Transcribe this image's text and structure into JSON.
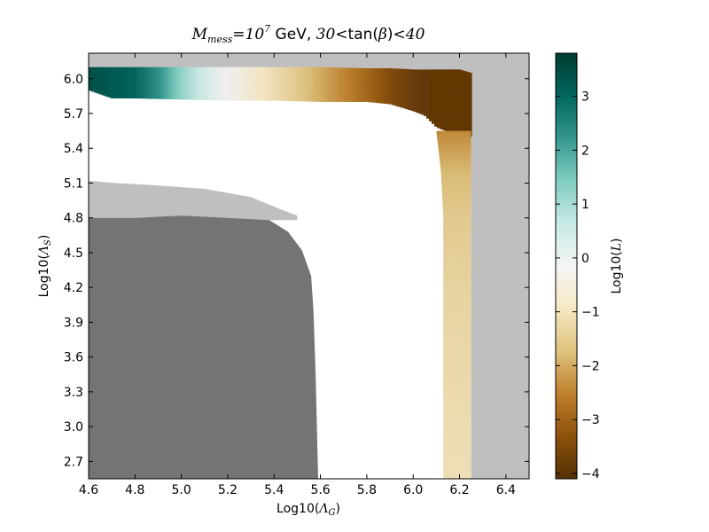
{
  "chart_data": {
    "type": "heatmap",
    "title": {
      "prefix_var": "M",
      "prefix_sub": "mess",
      "prefix_eq": "=10",
      "prefix_exp": "7",
      "middle": " GeV, ",
      "lo": "30",
      "lt1": "<",
      "func": "tan(",
      "beta": "β",
      "close": ")",
      "lt2": "<",
      "hi": "40"
    },
    "xlabel": {
      "text": "Log10(",
      "sym": "Λ",
      "sub": "G",
      "close": ")"
    },
    "ylabel": {
      "text": "Log10(",
      "sym": "Λ",
      "sub": "S",
      "close": ")"
    },
    "xlim": [
      4.6,
      6.5
    ],
    "ylim": [
      2.55,
      6.22
    ],
    "x_ticks": [
      "4.6",
      "4.8",
      "5.0",
      "5.2",
      "5.4",
      "5.6",
      "5.8",
      "6.0",
      "6.2",
      "6.4"
    ],
    "y_ticks": [
      "2.7",
      "3.0",
      "3.3",
      "3.6",
      "3.9",
      "4.2",
      "4.5",
      "4.8",
      "5.1",
      "5.4",
      "5.7",
      "6.0"
    ],
    "colorbar": {
      "label": "Log10(",
      "sym": "L",
      "close": ")",
      "range": [
        -4.1,
        3.8
      ],
      "ticks": [
        "3",
        "2",
        "1",
        "0",
        "−1",
        "−2",
        "−3",
        "−4"
      ],
      "colormap": "BrBG",
      "stops": [
        "#543005",
        "#8c510a",
        "#bf812d",
        "#dfc27d",
        "#f6e8c3",
        "#f5f5f5",
        "#c7eae5",
        "#80cdc1",
        "#35978f",
        "#01665e",
        "#003c30"
      ]
    },
    "regions": [
      {
        "name": "excluded-light",
        "color": "#bfbfbf",
        "polygon": [
          [
            4.6,
            6.22
          ],
          [
            6.5,
            6.22
          ],
          [
            6.5,
            2.55
          ],
          [
            6.25,
            2.55
          ],
          [
            6.25,
            6.05
          ],
          [
            6.2,
            6.08
          ],
          [
            4.6,
            6.1
          ]
        ]
      },
      {
        "name": "excluded-light-lower",
        "color": "#bfbfbf",
        "polygon": [
          [
            4.6,
            5.12
          ],
          [
            4.72,
            5.1
          ],
          [
            4.9,
            5.08
          ],
          [
            5.1,
            5.05
          ],
          [
            5.3,
            4.98
          ],
          [
            5.42,
            4.88
          ],
          [
            5.5,
            4.82
          ],
          [
            5.5,
            4.78
          ],
          [
            5.38,
            4.78
          ],
          [
            5.2,
            4.8
          ],
          [
            5.0,
            4.82
          ],
          [
            4.8,
            4.8
          ],
          [
            4.6,
            4.8
          ]
        ]
      },
      {
        "name": "excluded-dark",
        "color": "#747474",
        "polygon": [
          [
            4.6,
            4.8
          ],
          [
            4.8,
            4.8
          ],
          [
            5.0,
            4.82
          ],
          [
            5.2,
            4.8
          ],
          [
            5.38,
            4.78
          ],
          [
            5.46,
            4.68
          ],
          [
            5.52,
            4.52
          ],
          [
            5.56,
            4.3
          ],
          [
            5.57,
            4.0
          ],
          [
            5.58,
            3.4
          ],
          [
            5.59,
            2.55
          ],
          [
            4.6,
            2.55
          ]
        ]
      }
    ],
    "band": {
      "horizontal": [
        {
          "x": 4.6,
          "top": 6.1,
          "bottom": 5.9
        },
        {
          "x": 4.7,
          "top": 6.1,
          "bottom": 5.83
        },
        {
          "x": 4.8,
          "top": 6.1,
          "bottom": 5.83
        },
        {
          "x": 5.0,
          "top": 6.1,
          "bottom": 5.82
        },
        {
          "x": 5.2,
          "top": 6.1,
          "bottom": 5.81
        },
        {
          "x": 5.4,
          "top": 6.1,
          "bottom": 5.81
        },
        {
          "x": 5.6,
          "top": 6.1,
          "bottom": 5.8
        },
        {
          "x": 5.8,
          "top": 6.09,
          "bottom": 5.8
        },
        {
          "x": 5.9,
          "top": 6.09,
          "bottom": 5.78
        },
        {
          "x": 6.0,
          "top": 6.08,
          "bottom": 5.72
        },
        {
          "x": 6.05,
          "top": 6.08,
          "bottom": 5.68
        },
        {
          "x": 6.1,
          "top": 6.08,
          "bottom": 5.58
        },
        {
          "x": 6.2,
          "top": 6.08,
          "bottom": 5.5
        },
        {
          "x": 6.25,
          "top": 6.05,
          "bottom": 5.5
        }
      ],
      "vertical": [
        {
          "y": 5.55,
          "left": 6.1,
          "right": 6.25
        },
        {
          "y": 5.2,
          "left": 6.12,
          "right": 6.25
        },
        {
          "y": 4.8,
          "left": 6.13,
          "right": 6.25
        },
        {
          "y": 4.2,
          "left": 6.13,
          "right": 6.25
        },
        {
          "y": 3.6,
          "left": 6.13,
          "right": 6.25
        },
        {
          "y": 3.0,
          "left": 6.13,
          "right": 6.25
        },
        {
          "y": 2.55,
          "left": 6.13,
          "right": 6.25
        }
      ],
      "value_profile": [
        {
          "x": 4.6,
          "v": 3.4
        },
        {
          "x": 4.8,
          "v": 3.0
        },
        {
          "x": 4.9,
          "v": 2.3
        },
        {
          "x": 5.0,
          "v": 1.2
        },
        {
          "x": 5.1,
          "v": 0.4
        },
        {
          "x": 5.2,
          "v": -0.2
        },
        {
          "x": 5.35,
          "v": -0.9
        },
        {
          "x": 5.5,
          "v": -1.5
        },
        {
          "x": 5.65,
          "v": -2.2
        },
        {
          "x": 5.8,
          "v": -2.9
        },
        {
          "x": 5.9,
          "v": -3.4
        },
        {
          "x": 6.0,
          "v": -3.8
        },
        {
          "x": 6.1,
          "v": -3.9
        }
      ],
      "vertical_profile": [
        {
          "y": 6.1,
          "v": -3.9
        },
        {
          "y": 5.8,
          "v": -3.0
        },
        {
          "y": 5.5,
          "v": -2.3
        },
        {
          "y": 5.2,
          "v": -1.8
        },
        {
          "y": 4.8,
          "v": -1.5
        },
        {
          "y": 4.2,
          "v": -1.3
        },
        {
          "y": 3.6,
          "v": -1.2
        },
        {
          "y": 3.0,
          "v": -1.1
        },
        {
          "y": 2.55,
          "v": -1.05
        }
      ]
    }
  }
}
